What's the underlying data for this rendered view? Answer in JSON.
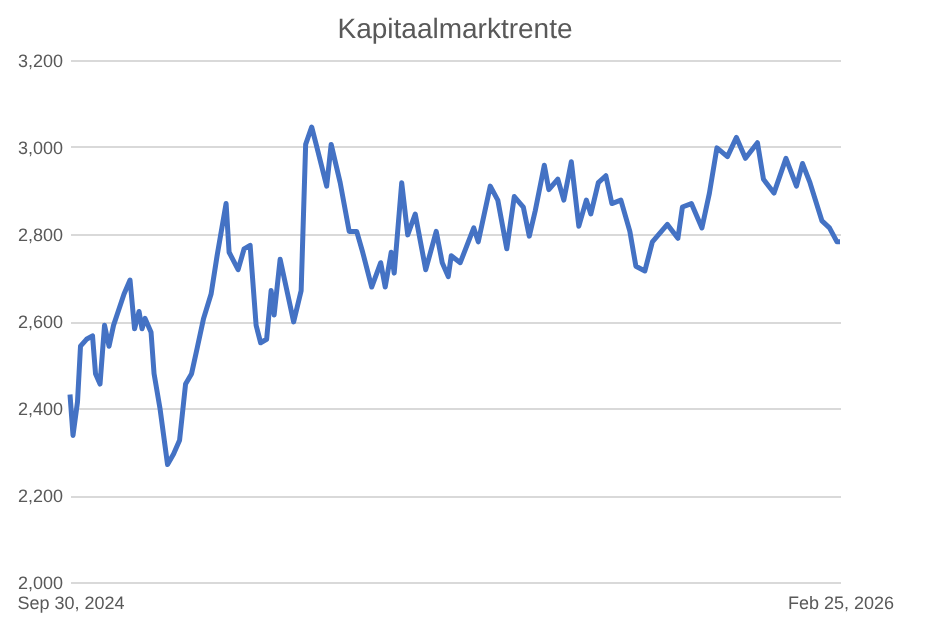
{
  "chart_data": {
    "type": "line",
    "title": "Kapitaalmarktrente",
    "x": [
      "2024-09-30",
      "2024-10-02",
      "2024-10-05",
      "2024-10-07",
      "2024-10-11",
      "2024-10-15",
      "2024-10-17",
      "2024-10-20",
      "2024-10-23",
      "2024-10-26",
      "2024-10-29",
      "2024-11-05",
      "2024-11-09",
      "2024-11-12",
      "2024-11-15",
      "2024-11-17",
      "2024-11-19",
      "2024-11-23",
      "2024-11-25",
      "2024-11-29",
      "2024-12-04",
      "2024-12-08",
      "2024-12-12",
      "2024-12-16",
      "2024-12-20",
      "2024-12-24",
      "2024-12-28",
      "2025-01-02",
      "2025-01-06",
      "2025-01-12",
      "2025-01-14",
      "2025-01-20",
      "2025-01-24",
      "2025-01-28",
      "2025-02-01",
      "2025-02-04",
      "2025-02-08",
      "2025-02-11",
      "2025-02-13",
      "2025-02-17",
      "2025-02-22",
      "2025-02-26",
      "2025-03-03",
      "2025-03-06",
      "2025-03-10",
      "2025-03-13",
      "2025-03-20",
      "2025-03-23",
      "2025-03-29",
      "2025-04-04",
      "2025-04-09",
      "2025-04-13",
      "2025-04-19",
      "2025-04-25",
      "2025-04-28",
      "2025-05-02",
      "2025-05-04",
      "2025-05-09",
      "2025-05-13",
      "2025-05-18",
      "2025-05-25",
      "2025-06-01",
      "2025-06-05",
      "2025-06-09",
      "2025-06-11",
      "2025-06-17",
      "2025-06-26",
      "2025-06-29",
      "2025-07-07",
      "2025-07-12",
      "2025-07-18",
      "2025-07-23",
      "2025-07-29",
      "2025-08-02",
      "2025-08-06",
      "2025-08-12",
      "2025-08-15",
      "2025-08-21",
      "2025-08-25",
      "2025-08-30",
      "2025-09-04",
      "2025-09-09",
      "2025-09-12",
      "2025-09-17",
      "2025-09-22",
      "2025-09-26",
      "2025-10-02",
      "2025-10-08",
      "2025-10-12",
      "2025-10-18",
      "2025-10-23",
      "2025-11-02",
      "2025-11-09",
      "2025-11-12",
      "2025-11-18",
      "2025-11-25",
      "2025-11-30",
      "2025-12-05",
      "2025-12-12",
      "2025-12-18",
      "2025-12-24",
      "2026-01-01",
      "2026-01-05",
      "2026-01-12",
      "2026-01-20",
      "2026-01-27",
      "2026-01-31",
      "2026-02-05",
      "2026-02-13",
      "2026-02-18",
      "2026-02-23",
      "2026-02-25"
    ],
    "series": [
      {
        "color": "#4472c4",
        "values": [
          2431,
          2337,
          2414,
          2542,
          2558,
          2566,
          2479,
          2455,
          2590,
          2542,
          2590,
          2662,
          2694,
          2582,
          2622,
          2582,
          2606,
          2574,
          2479,
          2398,
          2270,
          2294,
          2326,
          2455,
          2479,
          2542,
          2606,
          2662,
          2750,
          2870,
          2758,
          2718,
          2766,
          2774,
          2590,
          2550,
          2558,
          2670,
          2614,
          2742,
          2662,
          2598,
          2670,
          3006,
          3046,
          3006,
          2910,
          3006,
          2918,
          2806,
          2806,
          2758,
          2678,
          2734,
          2678,
          2758,
          2710,
          2918,
          2798,
          2846,
          2718,
          2806,
          2734,
          2702,
          2750,
          2734,
          2814,
          2782,
          2910,
          2878,
          2766,
          2886,
          2862,
          2795,
          2854,
          2958,
          2902,
          2926,
          2878,
          2966,
          2818,
          2878,
          2846,
          2918,
          2934,
          2870,
          2878,
          2806,
          2726,
          2715,
          2782,
          2822,
          2790,
          2862,
          2870,
          2814,
          2894,
          2998,
          2978,
          3022,
          2974,
          3010,
          2926,
          2894,
          2974,
          2910,
          2962,
          2918,
          2830,
          2814,
          2782,
          2782
        ]
      }
    ],
    "xlim": [
      "2024-09-30",
      "2026-02-25"
    ],
    "xticks": [
      {
        "value": "2024-09-30",
        "label": "Sep 30, 2024"
      },
      {
        "value": "2026-02-25",
        "label": "Feb 25, 2026"
      }
    ],
    "ylim": [
      2000,
      3200
    ],
    "yticks": [
      {
        "value": 2000,
        "label": "2,000"
      },
      {
        "value": 2200,
        "label": "2,200"
      },
      {
        "value": 2400,
        "label": "2,400"
      },
      {
        "value": 2600,
        "label": "2,600"
      },
      {
        "value": 2800,
        "label": "2,800"
      },
      {
        "value": 3000,
        "label": "3,000"
      },
      {
        "value": 3200,
        "label": "3,200"
      }
    ],
    "grid": "y",
    "legend": false,
    "marker": "none",
    "line_style": "solid"
  }
}
